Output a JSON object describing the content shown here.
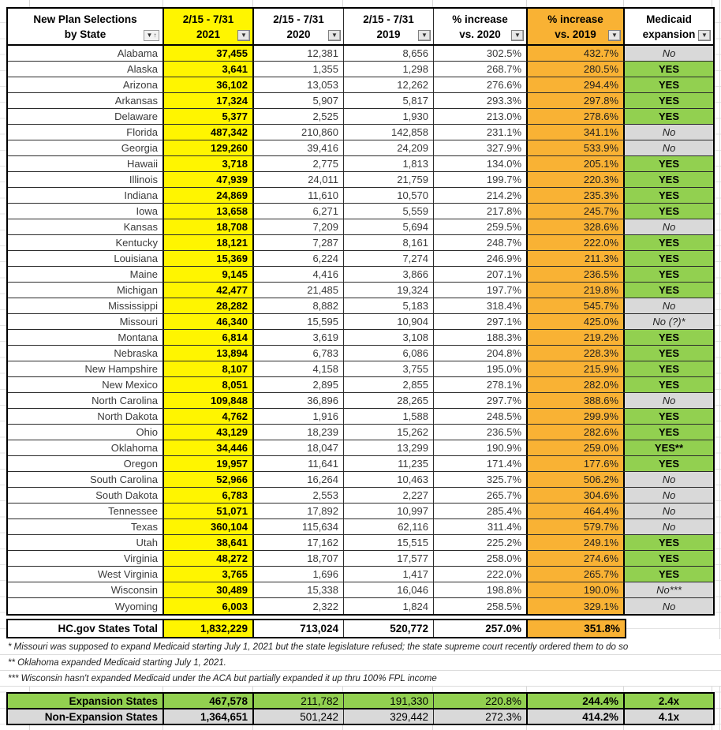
{
  "colors": {
    "yellow": "#FFF500",
    "orange": "#F9B234",
    "green": "#92D050",
    "gray": "#D9D9D9"
  },
  "header": {
    "cols": [
      {
        "line1": "New Plan Selections",
        "line2": "by State",
        "filter": "sort"
      },
      {
        "line1": "2/15 - 7/31",
        "line2": "2021",
        "filter": "dropdown"
      },
      {
        "line1": "2/15 - 7/31",
        "line2": "2020",
        "filter": "dropdown"
      },
      {
        "line1": "2/15 - 7/31",
        "line2": "2019",
        "filter": "dropdown"
      },
      {
        "line1": "% increase",
        "line2": "vs. 2020",
        "filter": "dropdown"
      },
      {
        "line1": "% increase",
        "line2": "vs. 2019",
        "filter": "dropdown"
      },
      {
        "line1": "Medicaid",
        "line2": "expansion",
        "filter": "dropdown"
      }
    ]
  },
  "icons": {
    "filter_chevron": "▼",
    "sort_chevron": "▼",
    "sort_arrow": "↑"
  },
  "rows": [
    {
      "state": "Alabama",
      "y2021": "37,455",
      "y2020": "12,381",
      "y2019": "8,656",
      "vs2020": "302.5%",
      "vs2019": "432.7%",
      "expansion": "No"
    },
    {
      "state": "Alaska",
      "y2021": "3,641",
      "y2020": "1,355",
      "y2019": "1,298",
      "vs2020": "268.7%",
      "vs2019": "280.5%",
      "expansion": "YES"
    },
    {
      "state": "Arizona",
      "y2021": "36,102",
      "y2020": "13,053",
      "y2019": "12,262",
      "vs2020": "276.6%",
      "vs2019": "294.4%",
      "expansion": "YES"
    },
    {
      "state": "Arkansas",
      "y2021": "17,324",
      "y2020": "5,907",
      "y2019": "5,817",
      "vs2020": "293.3%",
      "vs2019": "297.8%",
      "expansion": "YES"
    },
    {
      "state": "Delaware",
      "y2021": "5,377",
      "y2020": "2,525",
      "y2019": "1,930",
      "vs2020": "213.0%",
      "vs2019": "278.6%",
      "expansion": "YES"
    },
    {
      "state": "Florida",
      "y2021": "487,342",
      "y2020": "210,860",
      "y2019": "142,858",
      "vs2020": "231.1%",
      "vs2019": "341.1%",
      "expansion": "No"
    },
    {
      "state": "Georgia",
      "y2021": "129,260",
      "y2020": "39,416",
      "y2019": "24,209",
      "vs2020": "327.9%",
      "vs2019": "533.9%",
      "expansion": "No"
    },
    {
      "state": "Hawaii",
      "y2021": "3,718",
      "y2020": "2,775",
      "y2019": "1,813",
      "vs2020": "134.0%",
      "vs2019": "205.1%",
      "expansion": "YES"
    },
    {
      "state": "Illinois",
      "y2021": "47,939",
      "y2020": "24,011",
      "y2019": "21,759",
      "vs2020": "199.7%",
      "vs2019": "220.3%",
      "expansion": "YES"
    },
    {
      "state": "Indiana",
      "y2021": "24,869",
      "y2020": "11,610",
      "y2019": "10,570",
      "vs2020": "214.2%",
      "vs2019": "235.3%",
      "expansion": "YES"
    },
    {
      "state": "Iowa",
      "y2021": "13,658",
      "y2020": "6,271",
      "y2019": "5,559",
      "vs2020": "217.8%",
      "vs2019": "245.7%",
      "expansion": "YES"
    },
    {
      "state": "Kansas",
      "y2021": "18,708",
      "y2020": "7,209",
      "y2019": "5,694",
      "vs2020": "259.5%",
      "vs2019": "328.6%",
      "expansion": "No"
    },
    {
      "state": "Kentucky",
      "y2021": "18,121",
      "y2020": "7,287",
      "y2019": "8,161",
      "vs2020": "248.7%",
      "vs2019": "222.0%",
      "expansion": "YES"
    },
    {
      "state": "Louisiana",
      "y2021": "15,369",
      "y2020": "6,224",
      "y2019": "7,274",
      "vs2020": "246.9%",
      "vs2019": "211.3%",
      "expansion": "YES"
    },
    {
      "state": "Maine",
      "y2021": "9,145",
      "y2020": "4,416",
      "y2019": "3,866",
      "vs2020": "207.1%",
      "vs2019": "236.5%",
      "expansion": "YES"
    },
    {
      "state": "Michigan",
      "y2021": "42,477",
      "y2020": "21,485",
      "y2019": "19,324",
      "vs2020": "197.7%",
      "vs2019": "219.8%",
      "expansion": "YES"
    },
    {
      "state": "Mississippi",
      "y2021": "28,282",
      "y2020": "8,882",
      "y2019": "5,183",
      "vs2020": "318.4%",
      "vs2019": "545.7%",
      "expansion": "No"
    },
    {
      "state": "Missouri",
      "y2021": "46,340",
      "y2020": "15,595",
      "y2019": "10,904",
      "vs2020": "297.1%",
      "vs2019": "425.0%",
      "expansion": "No (?)*"
    },
    {
      "state": "Montana",
      "y2021": "6,814",
      "y2020": "3,619",
      "y2019": "3,108",
      "vs2020": "188.3%",
      "vs2019": "219.2%",
      "expansion": "YES"
    },
    {
      "state": "Nebraska",
      "y2021": "13,894",
      "y2020": "6,783",
      "y2019": "6,086",
      "vs2020": "204.8%",
      "vs2019": "228.3%",
      "expansion": "YES"
    },
    {
      "state": "New Hampshire",
      "y2021": "8,107",
      "y2020": "4,158",
      "y2019": "3,755",
      "vs2020": "195.0%",
      "vs2019": "215.9%",
      "expansion": "YES"
    },
    {
      "state": "New Mexico",
      "y2021": "8,051",
      "y2020": "2,895",
      "y2019": "2,855",
      "vs2020": "278.1%",
      "vs2019": "282.0%",
      "expansion": "YES"
    },
    {
      "state": "North Carolina",
      "y2021": "109,848",
      "y2020": "36,896",
      "y2019": "28,265",
      "vs2020": "297.7%",
      "vs2019": "388.6%",
      "expansion": "No"
    },
    {
      "state": "North Dakota",
      "y2021": "4,762",
      "y2020": "1,916",
      "y2019": "1,588",
      "vs2020": "248.5%",
      "vs2019": "299.9%",
      "expansion": "YES"
    },
    {
      "state": "Ohio",
      "y2021": "43,129",
      "y2020": "18,239",
      "y2019": "15,262",
      "vs2020": "236.5%",
      "vs2019": "282.6%",
      "expansion": "YES"
    },
    {
      "state": "Oklahoma",
      "y2021": "34,446",
      "y2020": "18,047",
      "y2019": "13,299",
      "vs2020": "190.9%",
      "vs2019": "259.0%",
      "expansion": "YES**"
    },
    {
      "state": "Oregon",
      "y2021": "19,957",
      "y2020": "11,641",
      "y2019": "11,235",
      "vs2020": "171.4%",
      "vs2019": "177.6%",
      "expansion": "YES"
    },
    {
      "state": "South Carolina",
      "y2021": "52,966",
      "y2020": "16,264",
      "y2019": "10,463",
      "vs2020": "325.7%",
      "vs2019": "506.2%",
      "expansion": "No"
    },
    {
      "state": "South Dakota",
      "y2021": "6,783",
      "y2020": "2,553",
      "y2019": "2,227",
      "vs2020": "265.7%",
      "vs2019": "304.6%",
      "expansion": "No"
    },
    {
      "state": "Tennessee",
      "y2021": "51,071",
      "y2020": "17,892",
      "y2019": "10,997",
      "vs2020": "285.4%",
      "vs2019": "464.4%",
      "expansion": "No"
    },
    {
      "state": "Texas",
      "y2021": "360,104",
      "y2020": "115,634",
      "y2019": "62,116",
      "vs2020": "311.4%",
      "vs2019": "579.7%",
      "expansion": "No"
    },
    {
      "state": "Utah",
      "y2021": "38,641",
      "y2020": "17,162",
      "y2019": "15,515",
      "vs2020": "225.2%",
      "vs2019": "249.1%",
      "expansion": "YES"
    },
    {
      "state": "Virginia",
      "y2021": "48,272",
      "y2020": "18,707",
      "y2019": "17,577",
      "vs2020": "258.0%",
      "vs2019": "274.6%",
      "expansion": "YES"
    },
    {
      "state": "West Virginia",
      "y2021": "3,765",
      "y2020": "1,696",
      "y2019": "1,417",
      "vs2020": "222.0%",
      "vs2019": "265.7%",
      "expansion": "YES"
    },
    {
      "state": "Wisconsin",
      "y2021": "30,489",
      "y2020": "15,338",
      "y2019": "16,046",
      "vs2020": "198.8%",
      "vs2019": "190.0%",
      "expansion": "No***"
    },
    {
      "state": "Wyoming",
      "y2021": "6,003",
      "y2020": "2,322",
      "y2019": "1,824",
      "vs2020": "258.5%",
      "vs2019": "329.1%",
      "expansion": "No"
    }
  ],
  "total": {
    "label": "HC.gov States Total",
    "y2021": "1,832,229",
    "y2020": "713,024",
    "y2019": "520,772",
    "vs2020": "257.0%",
    "vs2019": "351.8%"
  },
  "footnotes": [
    "* Missouri was supposed to expand Medicaid starting July 1, 2021 but the state legislature refused; the state supreme court recently ordered them to do so",
    "** Oklahoma expanded Medicaid starting July 1, 2021.",
    "*** Wisconsin hasn't expanded Medicaid under the ACA but partially expanded it up thru 100% FPL income"
  ],
  "summary": [
    {
      "label": "Expansion States",
      "y2021": "467,578",
      "y2020": "211,782",
      "y2019": "191,330",
      "vs2020": "220.8%",
      "vs2019": "244.4%",
      "multiplier": "2.4x"
    },
    {
      "label": "Non-Expansion States",
      "y2021": "1,364,651",
      "y2020": "501,242",
      "y2019": "329,442",
      "vs2020": "272.3%",
      "vs2019": "414.2%",
      "multiplier": "4.1x"
    }
  ]
}
